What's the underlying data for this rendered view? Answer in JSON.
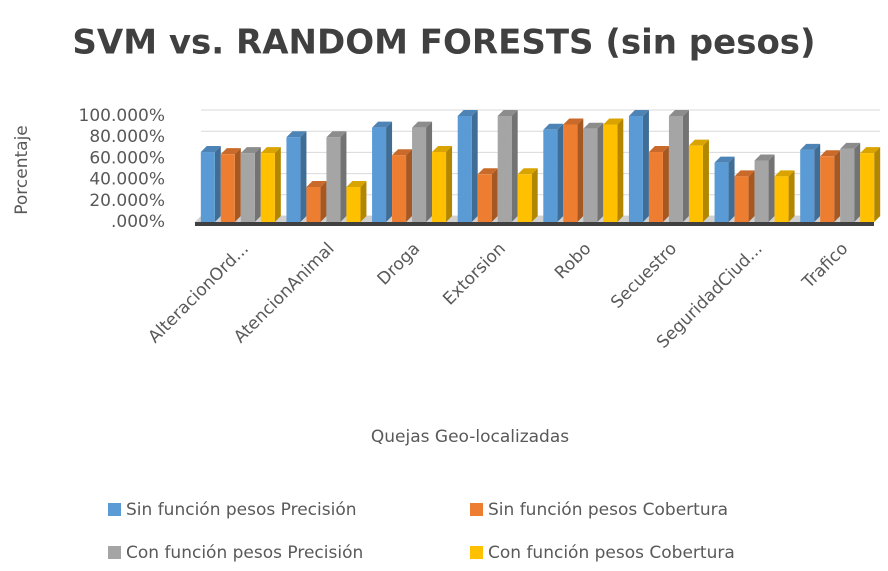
{
  "chart_data": {
    "type": "bar",
    "title": "SVM vs. RANDOM FORESTS (sin pesos)",
    "x_label": "Quejas Geo-localizadas",
    "y_label": "Porcentaje",
    "categories": [
      "AlteracionOrd...",
      "AtencionAnimal",
      "Droga",
      "Extorsion",
      "Robo",
      "Secuestro",
      "SeguridadCiud...",
      "Trafico"
    ],
    "series": [
      {
        "name": "Sin función pesos Precisión",
        "color": "#5b9bd5",
        "values": [
          66,
          80,
          89,
          100,
          87,
          100,
          56,
          68
        ]
      },
      {
        "name": "Sin función pesos Cobertura",
        "color": "#ed7d31",
        "values": [
          64,
          33,
          63,
          45,
          92,
          66,
          43,
          62
        ]
      },
      {
        "name": "Con función pesos Precisión",
        "color": "#a5a5a5",
        "values": [
          65,
          80,
          89,
          100,
          88,
          100,
          58,
          69
        ]
      },
      {
        "name": "Con función pesos Cobertura",
        "color": "#ffc000",
        "values": [
          65,
          33,
          66,
          45,
          92,
          72,
          43,
          65
        ]
      }
    ],
    "ylim": [
      0,
      100
    ],
    "yticks": [
      {
        "value": 0,
        "label": ".000%"
      },
      {
        "value": 20,
        "label": "20.000%"
      },
      {
        "value": 40,
        "label": "40.000%"
      },
      {
        "value": 60,
        "label": "60.000%"
      },
      {
        "value": 80,
        "label": "80.000%"
      },
      {
        "value": 100,
        "label": "100.000%"
      }
    ],
    "grid": true
  }
}
